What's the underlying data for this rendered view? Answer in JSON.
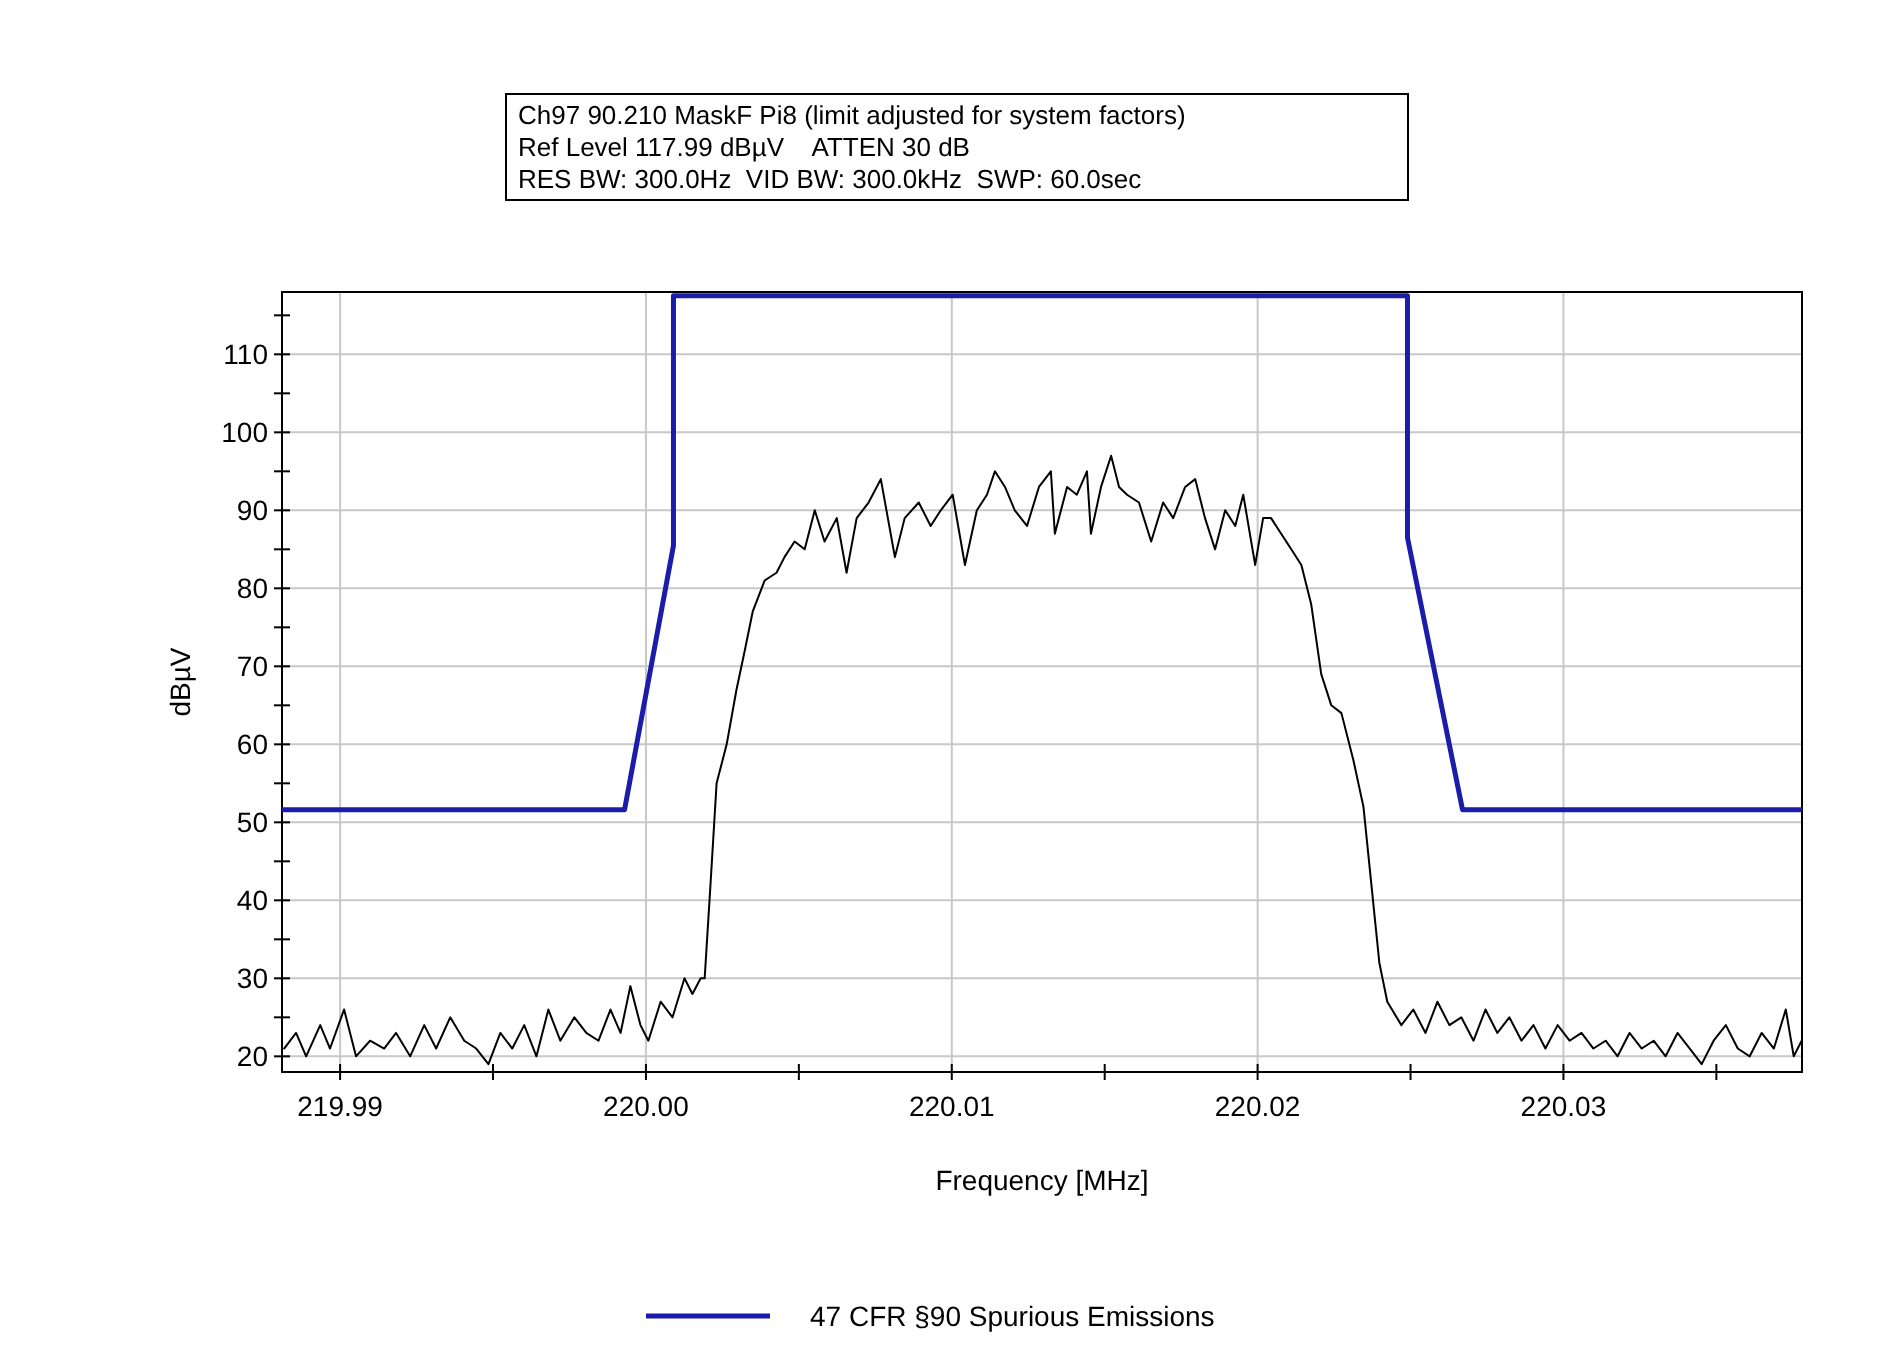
{
  "chart_data": {
    "type": "line",
    "title": "Ch97 90.210 MaskF Pi8 (limit adjusted for system factors)",
    "subtitle": "Ref Level 117.99 dBµV    ATTEN 30 dB",
    "annotations": [
      "RES BW: 300.0Hz  VID BW: 300.0kHz  SWP: 60.0sec"
    ],
    "xlabel": "Frequency [MHz]",
    "ylabel": "dBµV",
    "xlim": [
      219.9881,
      220.0378
    ],
    "ylim": [
      17.99,
      117.99
    ],
    "xticks": [
      {
        "value": 219.99,
        "label": "219.99"
      },
      {
        "value": 219.995,
        "label": null
      },
      {
        "value": 220.0,
        "label": "220.00"
      },
      {
        "value": 220.005,
        "label": null
      },
      {
        "value": 220.01,
        "label": "220.01"
      },
      {
        "value": 220.015,
        "label": null
      },
      {
        "value": 220.02,
        "label": "220.02"
      },
      {
        "value": 220.025,
        "label": null
      },
      {
        "value": 220.03,
        "label": "220.03"
      },
      {
        "value": 220.035,
        "label": null
      }
    ],
    "yticks": [
      20,
      {
        "value": 25,
        "label": null
      },
      30,
      {
        "value": 35,
        "label": null
      },
      40,
      {
        "value": 45,
        "label": null
      },
      50,
      {
        "value": 55,
        "label": null
      },
      60,
      {
        "value": 65,
        "label": null
      },
      70,
      {
        "value": 75,
        "label": null
      },
      80,
      {
        "value": 85,
        "label": null
      },
      90,
      {
        "value": 95,
        "label": null
      },
      100,
      {
        "value": 105,
        "label": null
      },
      110,
      {
        "value": 115,
        "label": null
      }
    ],
    "grid": true,
    "legend": "bottom",
    "x": [
      219.98817,
      219.98856,
      219.98889,
      219.98935,
      219.98967,
      219.99013,
      219.99052,
      219.99098,
      219.99144,
      219.99183,
      219.99229,
      219.99275,
      219.99314,
      219.9936,
      219.99406,
      219.99445,
      219.99485,
      219.99524,
      219.99563,
      219.99602,
      219.99642,
      219.99681,
      219.9972,
      219.99766,
      219.99805,
      219.99845,
      219.99884,
      219.99917,
      219.99949,
      219.99982,
      220.00008,
      220.00048,
      220.00087,
      220.00126,
      220.00152,
      220.00179,
      220.00192,
      220.00211,
      220.00231,
      220.00264,
      220.00296,
      220.00323,
      220.00349,
      220.00388,
      220.00427,
      220.00453,
      220.00486,
      220.00519,
      220.00552,
      220.00584,
      220.00624,
      220.00656,
      220.00689,
      220.00728,
      220.00768,
      220.00814,
      220.00846,
      220.00892,
      220.00931,
      220.00964,
      220.01003,
      220.01043,
      220.01082,
      220.01115,
      220.01141,
      220.01174,
      220.01206,
      220.01246,
      220.01285,
      220.01324,
      220.01337,
      220.01377,
      220.01409,
      220.01442,
      220.01455,
      220.01488,
      220.01521,
      220.01547,
      220.01573,
      220.01612,
      220.01652,
      220.01691,
      220.01724,
      220.01763,
      220.01796,
      220.01828,
      220.01861,
      220.01894,
      220.01927,
      220.01953,
      220.01992,
      220.02018,
      220.02044,
      220.02077,
      220.0211,
      220.02143,
      220.02175,
      220.02208,
      220.02241,
      220.02274,
      220.02313,
      220.02346,
      220.02372,
      220.02398,
      220.02424,
      220.0247,
      220.02509,
      220.02549,
      220.02588,
      220.02627,
      220.02666,
      220.02706,
      220.02745,
      220.02784,
      220.02823,
      220.02863,
      220.02902,
      220.02941,
      220.02981,
      220.0302,
      220.03059,
      220.03098,
      220.03138,
      220.03177,
      220.03216,
      220.03256,
      220.03295,
      220.03334,
      220.03373,
      220.03413,
      220.03452,
      220.03491,
      220.03531,
      220.0357,
      220.03609,
      220.03648,
      220.03688,
      220.03727,
      220.03753,
      220.03779
    ],
    "series": [
      {
        "type": "line",
        "color": "#000000",
        "values": [
          21,
          23,
          20,
          24,
          21,
          26,
          20,
          22,
          21,
          23,
          20,
          24,
          21,
          25,
          22,
          21,
          19,
          23,
          21,
          24,
          20,
          26,
          22,
          25,
          23,
          22,
          26,
          23,
          29,
          24,
          22,
          27,
          25,
          30,
          28,
          30,
          30,
          42,
          55,
          60,
          67,
          72,
          77,
          81,
          82,
          84,
          86,
          85,
          90,
          86,
          89,
          82,
          89,
          91,
          94,
          84,
          89,
          91,
          88,
          90,
          92,
          83,
          90,
          92,
          95,
          93,
          90,
          88,
          93,
          95,
          87,
          93,
          92,
          95,
          87,
          93,
          97,
          93,
          92,
          91,
          86,
          91,
          89,
          93,
          94,
          89,
          85,
          90,
          88,
          92,
          83,
          89,
          89,
          87,
          85,
          83,
          78,
          69,
          65,
          64,
          58,
          52,
          42,
          32,
          27,
          24,
          26,
          23,
          27,
          24,
          25,
          22,
          26,
          23,
          25,
          22,
          24,
          21,
          24,
          22,
          23,
          21,
          22,
          20,
          23,
          21,
          22,
          20,
          23,
          21,
          19,
          22,
          24,
          21,
          20,
          23,
          21,
          26,
          20,
          22
        ]
      },
      {
        "type": "line",
        "name": "47 CFR §90 Spurious Emissions",
        "color": "#1c1caa",
        "x": [
          219.9881,
          219.9993,
          220.0009,
          220.0009,
          220.0249,
          220.0249,
          220.0267,
          220.0378
        ],
        "values": [
          51.6,
          51.6,
          85.5,
          117.5,
          117.5,
          86.5,
          51.6,
          51.6
        ]
      }
    ]
  }
}
